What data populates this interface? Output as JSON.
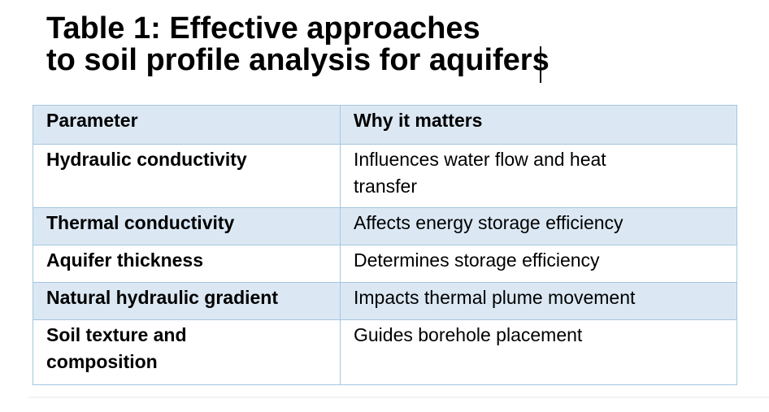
{
  "title": {
    "line1": "Table 1: Effective approaches",
    "line2": "to soil profile analysis for aquifers"
  },
  "table": {
    "columns": [
      "Parameter",
      "Why it matters"
    ],
    "rows": [
      {
        "parameter": "Hydraulic conductivity",
        "why": "Influences water flow and heat\ntransfer"
      },
      {
        "parameter": "Thermal conductivity",
        "why": "Affects energy storage efficiency"
      },
      {
        "parameter": "Aquifer thickness",
        "why": "Determines storage efficiency"
      },
      {
        "parameter": "Natural hydraulic gradient",
        "why": "Impacts thermal plume movement"
      },
      {
        "parameter": "Soil texture and\ncomposition",
        "why": "Guides borehole placement"
      }
    ]
  },
  "colors": {
    "band_fill": "#dbe8f4",
    "row_fill": "#ffffff",
    "border": "#a5c6de",
    "text": "#000000",
    "page_bg": "#ffffff"
  }
}
